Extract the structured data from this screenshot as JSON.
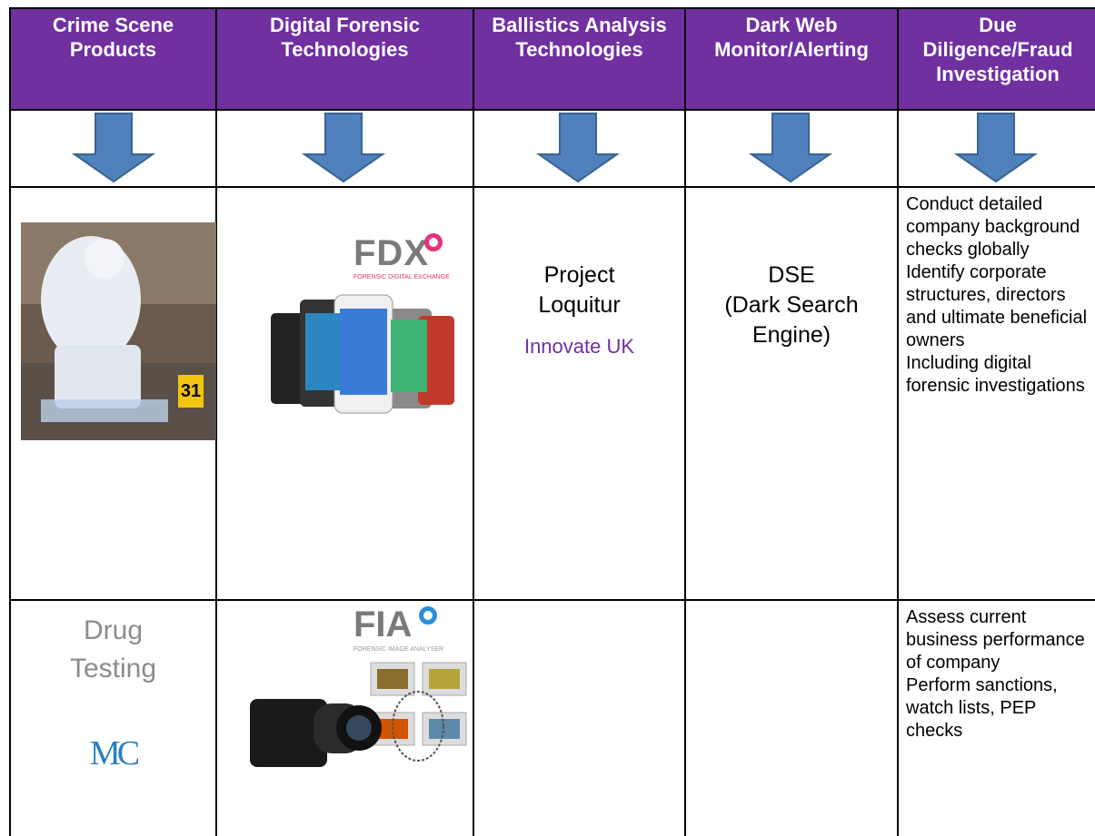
{
  "header": {
    "columns": [
      "Crime Scene Products",
      "Digital Forensic Technologies",
      "Ballistics Analysis Technologies",
      "Dark Web Monitor/Alerting",
      "Due Diligence/Fraud Investigation"
    ]
  },
  "row1": {
    "evidence_marker": "31",
    "fdx_logo": "FDX",
    "fdx_tagline": "FORENSIC DIGITAL EXCHANGE",
    "ballistics": "Project Loquitur",
    "ballistics_partner": "Innovate UK",
    "dark_web": [
      "DSE",
      "(Dark Search Engine)"
    ],
    "due_diligence": [
      "Conduct detailed company background checks globally",
      "Identify corporate structures, directors and ultimate beneficial owners",
      "Including digital forensic investigations"
    ]
  },
  "row2": {
    "crime_scene": "Drug Testing",
    "crime_scene_logo": "MC",
    "fia_logo": "FIA",
    "fia_tagline": "FORENSIC IMAGE ANALYSER",
    "due_diligence": [
      "Assess current business performance of company",
      "Perform sanctions, watch lists, PEP checks"
    ]
  }
}
